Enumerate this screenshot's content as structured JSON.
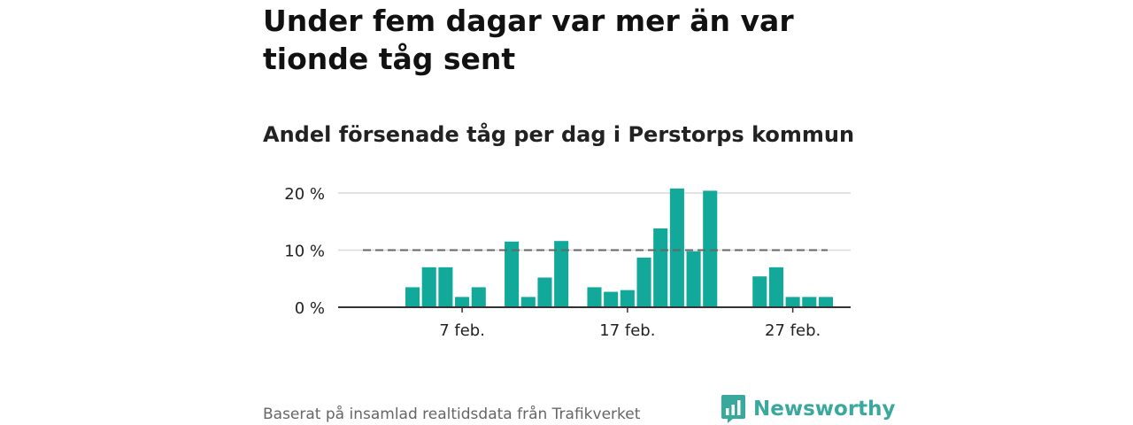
{
  "title": "Under fem dagar var mer än var tionde tåg sent",
  "subtitle": "Andel försenade tåg per dag i Perstorps kommun",
  "footer": {
    "source": "Baserat på insamlad realtidsdata från Trafikverket",
    "brand": "Newsworthy",
    "brand_icon": "newsworthy-logo-icon"
  },
  "colors": {
    "bar": "#12a89a",
    "reference_line": "#666666",
    "grid": "#d9d9d9",
    "axis": "#333333",
    "brand": "#3aa99d"
  },
  "chart_data": {
    "type": "bar",
    "title": "Andel försenade tåg per dag i Perstorps kommun",
    "xlabel": "",
    "ylabel": "",
    "x_type": "date",
    "x_range": [
      "1 feb.",
      "29 feb."
    ],
    "x_ticks": [
      {
        "day": 7,
        "label": "7 feb."
      },
      {
        "day": 17,
        "label": "17 feb."
      },
      {
        "day": 27,
        "label": "27 feb."
      }
    ],
    "y_ticks": [
      {
        "value": 0,
        "label": "0 %"
      },
      {
        "value": 10,
        "label": "10 %"
      },
      {
        "value": 20,
        "label": "20 %"
      }
    ],
    "ylim": [
      0,
      21.5
    ],
    "grid": true,
    "reference_line": {
      "value": 10,
      "style": "dashed"
    },
    "days": [
      4,
      5,
      6,
      7,
      8,
      10,
      11,
      12,
      13,
      15,
      16,
      17,
      18,
      19,
      20,
      21,
      22,
      25,
      26,
      27,
      28,
      29
    ],
    "values": [
      3.5,
      7.0,
      7.0,
      1.8,
      3.5,
      11.5,
      1.8,
      5.2,
      11.6,
      3.5,
      2.7,
      3.0,
      8.7,
      13.8,
      20.8,
      9.8,
      20.4,
      5.4,
      7.0,
      1.8,
      1.8,
      1.8
    ]
  }
}
